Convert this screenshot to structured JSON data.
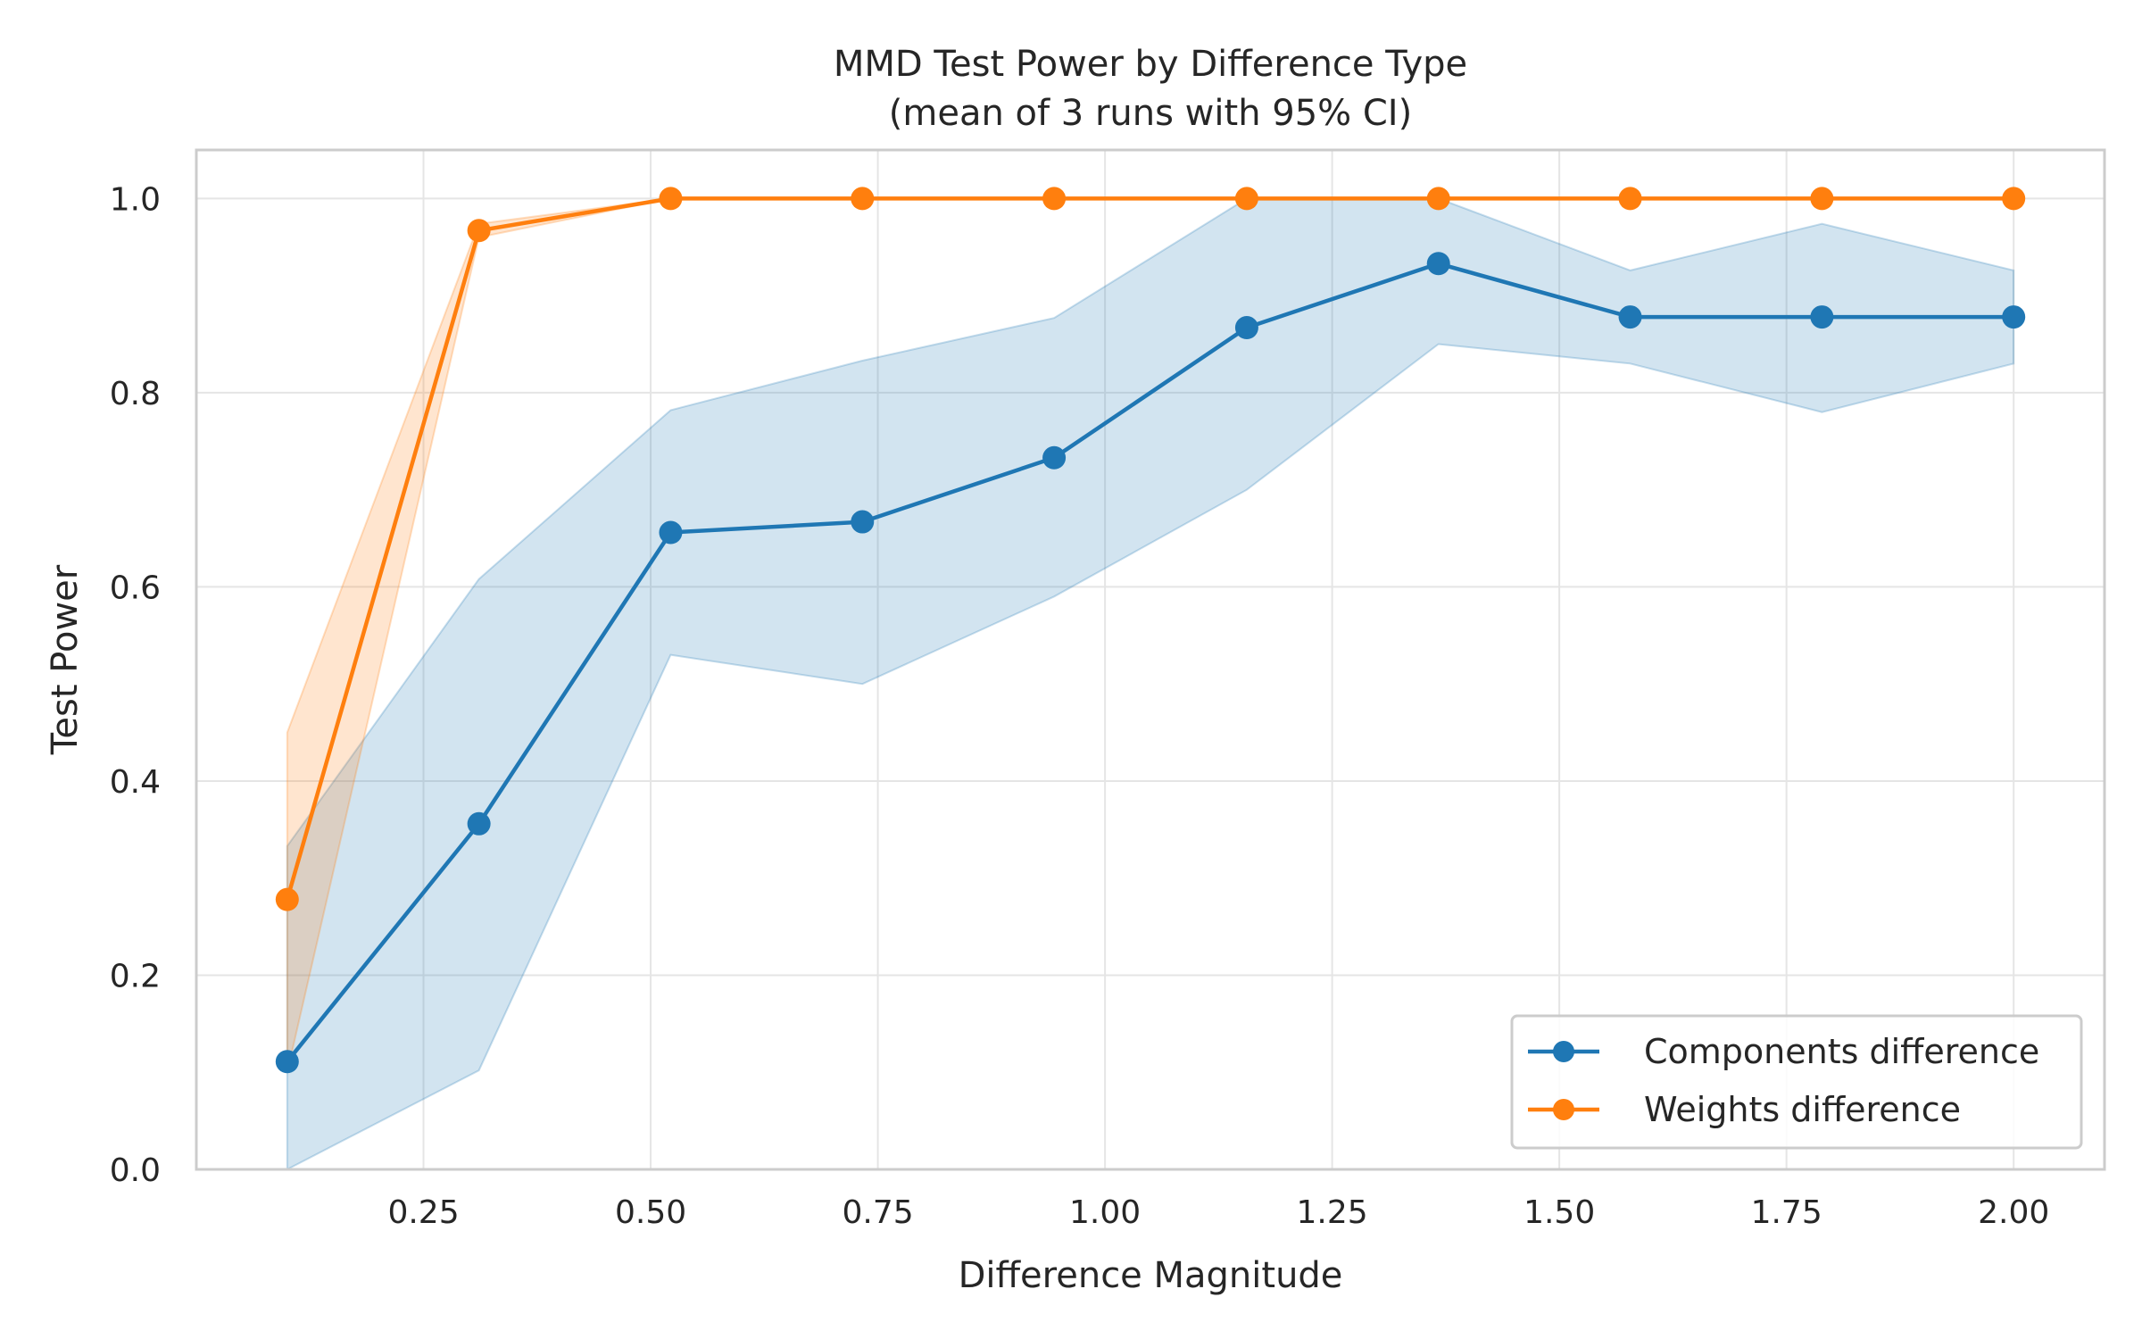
{
  "chart_data": {
    "type": "line",
    "title": "MMD Test Power by Difference Type",
    "subtitle": "(mean of 3 runs with 95% CI)",
    "xlabel": "Difference Magnitude",
    "ylabel": "Test Power",
    "xlim": [
      0.0,
      2.1
    ],
    "ylim": [
      0.0,
      1.05
    ],
    "xticks": [
      0.25,
      0.5,
      0.75,
      1.0,
      1.25,
      1.5,
      1.75,
      2.0
    ],
    "xtick_labels": [
      "0.25",
      "0.50",
      "0.75",
      "1.00",
      "1.25",
      "1.50",
      "1.75",
      "2.00"
    ],
    "yticks": [
      0.0,
      0.2,
      0.4,
      0.6,
      0.8,
      1.0
    ],
    "ytick_labels": [
      "0.0",
      "0.2",
      "0.4",
      "0.6",
      "0.8",
      "1.0"
    ],
    "grid": true,
    "legend_position": "lower-right",
    "x": [
      0.1,
      0.311,
      0.522,
      0.733,
      0.944,
      1.156,
      1.367,
      1.578,
      1.789,
      2.0
    ],
    "series": [
      {
        "name": "Components difference",
        "color": "#1f77b4",
        "marker": "circle",
        "values": [
          0.111,
          0.356,
          0.656,
          0.667,
          0.733,
          0.867,
          0.933,
          0.878,
          0.878,
          0.878
        ],
        "ci_lower": [
          0.0,
          0.102,
          0.53,
          0.5,
          0.59,
          0.7,
          0.85,
          0.83,
          0.78,
          0.83
        ],
        "ci_upper": [
          0.333,
          0.608,
          0.782,
          0.833,
          0.877,
          1.0,
          1.0,
          0.926,
          0.974,
          0.926
        ]
      },
      {
        "name": "Weights difference",
        "color": "#ff7f0e",
        "marker": "circle",
        "values": [
          0.278,
          0.967,
          1.0,
          1.0,
          1.0,
          1.0,
          1.0,
          1.0,
          1.0,
          1.0
        ],
        "ci_lower": [
          0.1,
          0.96,
          1.0,
          1.0,
          1.0,
          1.0,
          1.0,
          1.0,
          1.0,
          1.0
        ],
        "ci_upper": [
          0.45,
          0.974,
          1.0,
          1.0,
          1.0,
          1.0,
          1.0,
          1.0,
          1.0,
          1.0
        ]
      }
    ]
  }
}
